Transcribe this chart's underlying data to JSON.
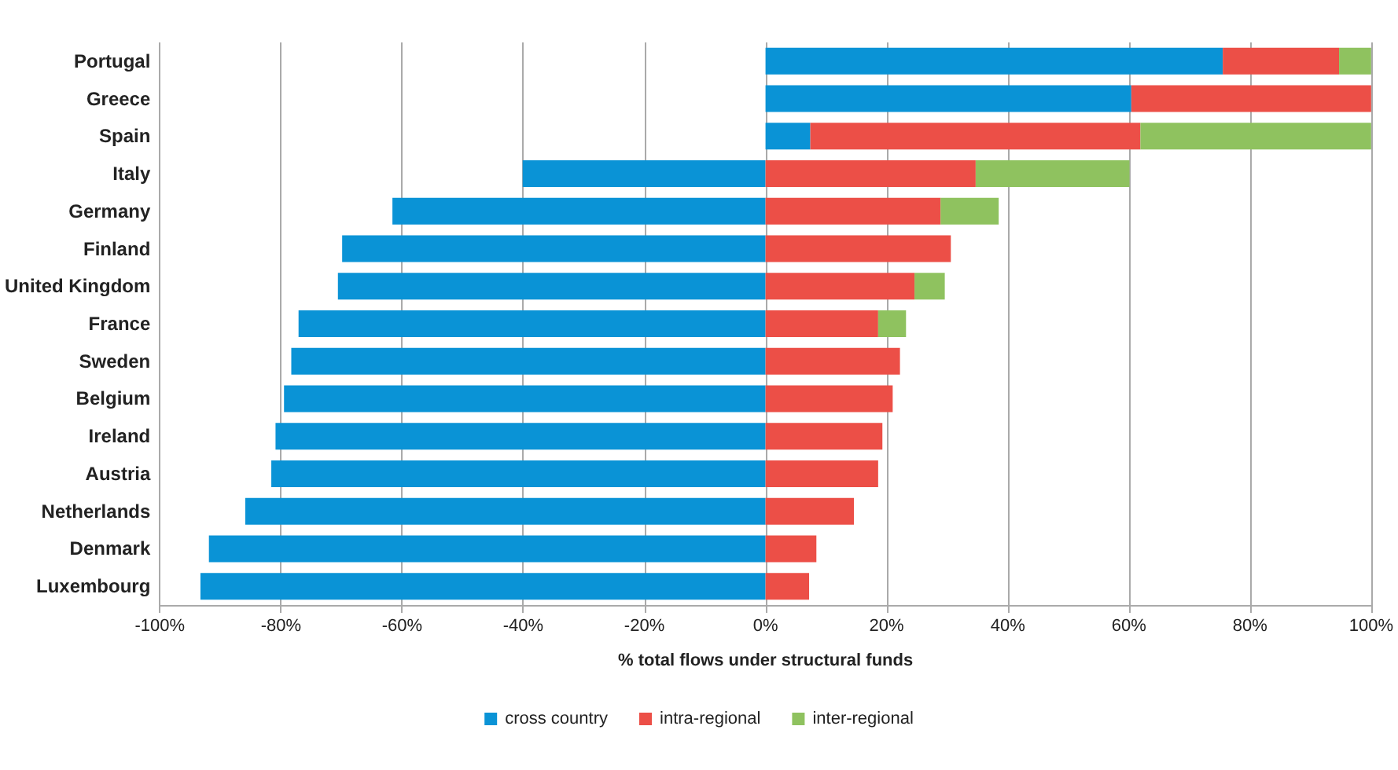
{
  "chart_data": {
    "type": "bar",
    "orientation": "horizontal",
    "stacked": true,
    "xlabel": "% total flows under structural funds",
    "categories": [
      "Portugal",
      "Greece",
      "Spain",
      "Italy",
      "Germany",
      "Finland",
      "United Kingdom",
      "France",
      "Sweden",
      "Belgium",
      "Ireland",
      "Austria",
      "Netherlands",
      "Denmark",
      "Luxembourg"
    ],
    "series": [
      {
        "name": "cross country",
        "color": "#0a93d6",
        "values": [
          75.5,
          60.4,
          7.4,
          -40.1,
          -61.6,
          -69.9,
          -70.6,
          -77.1,
          -78.3,
          -79.5,
          -80.9,
          -81.6,
          -85.9,
          -91.9,
          -93.3
        ]
      },
      {
        "name": "intra-regional",
        "color": "#ec4f47",
        "values": [
          19.2,
          39.6,
          54.5,
          34.7,
          28.9,
          30.6,
          24.6,
          18.6,
          22.2,
          21.0,
          19.3,
          18.6,
          14.6,
          8.4,
          7.2
        ]
      },
      {
        "name": "inter-regional",
        "color": "#8fc25f",
        "values": [
          5.3,
          null,
          38.1,
          25.4,
          9.6,
          null,
          5.0,
          4.6,
          null,
          null,
          null,
          null,
          null,
          null,
          null
        ]
      }
    ],
    "xlim": [
      -100,
      100
    ],
    "xticks": [
      {
        "value": -100,
        "label": "-100%"
      },
      {
        "value": -80,
        "label": "-80%"
      },
      {
        "value": -60,
        "label": "-60%"
      },
      {
        "value": -40,
        "label": "-40%"
      },
      {
        "value": -20,
        "label": "-20%"
      },
      {
        "value": 0,
        "label": "0%"
      },
      {
        "value": 20,
        "label": "20%"
      },
      {
        "value": 40,
        "label": "40%"
      },
      {
        "value": 60,
        "label": "60%"
      },
      {
        "value": 80,
        "label": "80%"
      },
      {
        "value": 100,
        "label": "100%"
      }
    ],
    "grid": "x",
    "legend": "bottom"
  }
}
